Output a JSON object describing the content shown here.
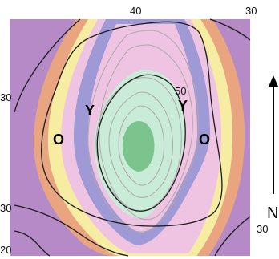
{
  "map": {
    "colors": {
      "purple": "#b58ac6",
      "orange": "#e8a580",
      "yellow": "#f7eda2",
      "pink": "#eec4e2",
      "violet": "#9f99d5",
      "pale_green": "#c9ecd9",
      "green": "#7cc48d",
      "contour_dark": "#1a1a1a",
      "contour_light": "#b0a8a8"
    },
    "labels": {
      "top_40": "40",
      "top_30": "30",
      "mid_50": "50",
      "left_30_upper": "30",
      "left_30_lower": "30",
      "left_20": "20",
      "bottom_right_30": "30"
    },
    "zone_letters": {
      "o_left": "O",
      "y_left": "Y",
      "y_right": "Y",
      "o_right": "O"
    },
    "north": {
      "label": "N",
      "icon": "north-arrow-icon"
    }
  }
}
